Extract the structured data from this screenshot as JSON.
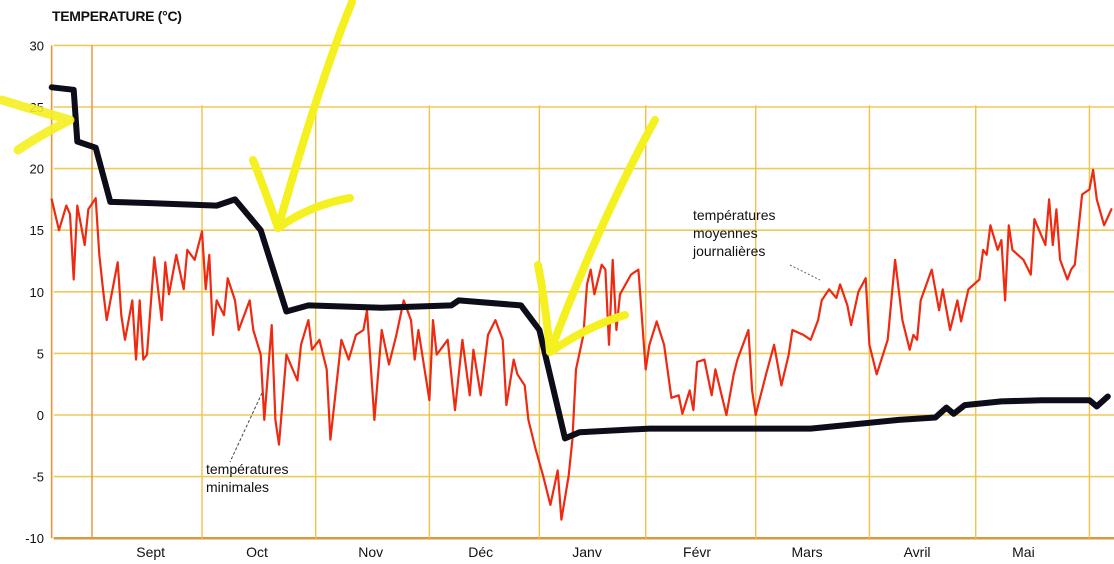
{
  "chart_data": {
    "type": "line",
    "title": "TEMPERATURE (°C)",
    "xlabel": "",
    "ylabel": "TEMPERATURE (°C)",
    "ylim": [
      -10,
      30
    ],
    "yticks": [
      30,
      25,
      20,
      15,
      10,
      5,
      0,
      -5,
      -10
    ],
    "xlim_days_from_sept_1": [
      -11,
      279
    ],
    "month_boundaries_days": [
      0,
      30,
      61,
      92,
      122,
      151,
      181,
      212,
      241,
      272
    ],
    "months": [
      {
        "label": "Sept",
        "center_day": 16
      },
      {
        "label": "Oct",
        "center_day": 45
      },
      {
        "label": "Nov",
        "center_day": 76
      },
      {
        "label": "Déc",
        "center_day": 106
      },
      {
        "label": "Janv",
        "center_day": 135
      },
      {
        "label": "Févr",
        "center_day": 165
      },
      {
        "label": "Mars",
        "center_day": 195
      },
      {
        "label": "Avril",
        "center_day": 225
      },
      {
        "label": "Mai",
        "center_day": 254
      }
    ],
    "grid": true,
    "annotations": [
      {
        "text_lines": [
          "températures",
          "minimales"
        ],
        "target_series": "red"
      },
      {
        "text_lines": [
          "températures",
          "moyennes",
          "journalières"
        ],
        "target_series": "red"
      }
    ],
    "series": [
      {
        "name": "red-daily-temperatures",
        "color": "#ee2a12",
        "x": [
          -11,
          -9,
          -7,
          -6,
          -5,
          -4,
          -2,
          -1,
          1,
          2,
          3,
          4,
          7,
          8,
          9,
          11,
          12,
          13,
          14,
          15,
          17,
          19,
          20,
          21,
          23,
          25,
          26,
          28,
          30,
          31,
          32,
          33,
          34,
          36,
          37,
          39,
          40,
          43,
          44,
          46,
          47,
          49,
          50,
          51,
          53,
          56,
          57,
          59,
          60,
          62,
          64,
          65,
          68,
          70,
          72,
          74,
          75,
          77,
          79,
          81,
          83,
          85,
          87,
          88,
          89,
          92,
          93,
          94,
          97,
          99,
          101,
          103,
          104,
          106,
          108,
          110,
          112,
          113,
          115,
          116,
          118,
          119,
          121,
          123,
          125,
          127,
          128,
          130,
          131,
          132,
          134,
          135,
          136,
          137,
          139,
          140,
          141,
          142,
          143,
          144,
          147,
          149,
          151,
          152,
          154,
          156,
          158,
          160,
          161,
          163,
          164,
          165,
          167,
          169,
          170,
          173,
          175,
          176,
          179,
          180,
          181,
          182,
          184,
          186,
          188,
          190,
          191,
          194,
          196,
          198,
          199,
          201,
          203,
          204,
          206,
          207,
          209,
          211,
          212,
          214,
          217,
          219,
          221,
          223,
          224,
          225,
          226,
          229,
          231,
          232,
          234,
          236,
          237,
          239,
          242,
          243,
          244,
          245,
          247,
          248,
          249,
          250,
          251,
          254,
          256,
          257,
          260,
          261,
          262,
          263,
          264,
          266,
          267,
          268,
          270,
          272,
          273,
          274,
          276,
          278
        ],
        "y": [
          17.5,
          15,
          17,
          16.3,
          11,
          17,
          13.8,
          16.7,
          17.6,
          13,
          10.2,
          7.7,
          12.4,
          8.1,
          6.1,
          9.3,
          4.5,
          9.3,
          4.5,
          4.9,
          12.8,
          7.7,
          12.4,
          9.8,
          13,
          10.2,
          13.4,
          12.6,
          14.9,
          10.2,
          13,
          6.5,
          9.3,
          8.1,
          11.1,
          9.3,
          6.9,
          9.3,
          6.9,
          4.9,
          -0.4,
          7.3,
          -0.4,
          -2.4,
          4.9,
          2.8,
          5.7,
          7.7,
          5.3,
          6.1,
          3.7,
          -2,
          6.1,
          4.5,
          6.5,
          6.9,
          8.5,
          -0.4,
          6.9,
          4.1,
          6.5,
          9.3,
          7.7,
          4.5,
          6.9,
          1.2,
          7.7,
          4.9,
          6.1,
          0.4,
          6.1,
          1.6,
          5.3,
          1.6,
          6.5,
          7.7,
          6.1,
          0.8,
          4.5,
          3.3,
          2.4,
          -0.4,
          -2.8,
          -4.9,
          -7.3,
          -4.5,
          -8.5,
          -4.9,
          -2,
          3.7,
          6.5,
          10.6,
          11.8,
          9.8,
          12.2,
          11.8,
          5.7,
          12.6,
          6.9,
          9.8,
          11.4,
          11.8,
          3.7,
          5.7,
          7.6,
          5.7,
          1.4,
          1.6,
          0.1,
          2,
          0.4,
          4.3,
          4.5,
          1.6,
          3.7,
          0,
          3.3,
          4.5,
          6.9,
          2,
          0,
          1.2,
          3.5,
          5.7,
          2.4,
          4.9,
          6.9,
          6.5,
          6.1,
          7.7,
          9.3,
          10.2,
          9.5,
          10.6,
          8.9,
          7.3,
          10,
          11.1,
          5.7,
          3.3,
          6.1,
          12.6,
          7.7,
          5.3,
          6.5,
          6.1,
          9.3,
          11.8,
          8.5,
          10.2,
          6.9,
          9.3,
          7.6,
          10.2,
          11,
          13.4,
          13,
          15.4,
          13.4,
          14.2,
          9.3,
          15.4,
          13.4,
          12.6,
          11.4,
          15.9,
          13.8,
          17.5,
          13.8,
          16.7,
          12.6,
          11,
          11.8,
          12.2,
          17.9,
          18.3,
          19.9,
          17.5,
          15.4,
          16.7
        ]
      },
      {
        "name": "black-hand-drawn-line",
        "color": "#0d0d1a",
        "x": [
          -11,
          -5,
          -4,
          1,
          5,
          16,
          34,
          39,
          46,
          53,
          59,
          79,
          98,
          100,
          117,
          122,
          129,
          133,
          152,
          196,
          220,
          230,
          233,
          235,
          238,
          248,
          259,
          272,
          274,
          277
        ],
        "y": [
          26.6,
          26.4,
          22.2,
          21.7,
          17.3,
          17.2,
          17.0,
          17.5,
          15.0,
          8.4,
          8.9,
          8.7,
          8.9,
          9.3,
          8.9,
          6.9,
          -1.9,
          -1.4,
          -1.1,
          -1.1,
          -0.4,
          -0.2,
          0.6,
          0.1,
          0.8,
          1.1,
          1.2,
          1.2,
          0.7,
          1.5
        ]
      }
    ],
    "highlight_color": "#f5f020"
  }
}
